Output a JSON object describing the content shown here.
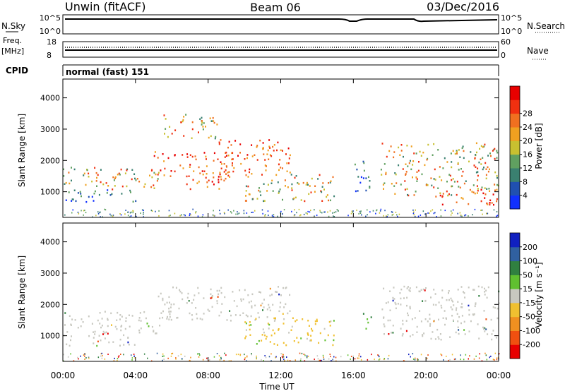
{
  "header": {
    "left": "Unwin (fitACF)",
    "center": "Beam 06",
    "right": "03/Dec/2016"
  },
  "nsky_panel": {
    "left_label": "N.Sky",
    "right_label": "N.Search",
    "left_ticks": [
      "10^5",
      "10^0"
    ],
    "right_ticks": [
      "10^5",
      "10^0"
    ]
  },
  "freq_panel": {
    "left_label_1": "Freq.",
    "left_label_2": "[MHz]",
    "left_ticks": [
      "18",
      "8"
    ],
    "right_ticks": [
      "60",
      "0"
    ],
    "right_label": "Nave"
  },
  "cpid_panel": {
    "left_label": "CPID",
    "mode_text": "normal (fast) 151"
  },
  "chart_data": [
    {
      "type": "heatmap",
      "parameter": "Power",
      "ylabel": "Slant Range [km]",
      "y_ticks": [
        "1000",
        "2000",
        "3000",
        "4000"
      ],
      "ylim": [
        180,
        4600
      ],
      "xlim_hours": [
        0,
        24
      ],
      "colorbar_label": "Power [dB]",
      "colorbar_ticks": [
        "4",
        "8",
        "12",
        "16",
        "20",
        "24",
        "28"
      ],
      "colorbar_colors": [
        "#1030ff",
        "#2050b0",
        "#3a8070",
        "#60a060",
        "#c8c030",
        "#f0a020",
        "#f07020",
        "#f03010",
        "#e80000"
      ],
      "scatter_regions": [
        {
          "t0": 0.0,
          "t1": 5.5,
          "r0": 1100,
          "r1": 1800,
          "level": "mid"
        },
        {
          "t0": 0.0,
          "t1": 4.0,
          "r0": 700,
          "r1": 1100,
          "level": "low"
        },
        {
          "t0": 5.0,
          "t1": 9.5,
          "r0": 1500,
          "r1": 2300,
          "level": "high"
        },
        {
          "t0": 6.5,
          "t1": 9.0,
          "r0": 1100,
          "r1": 1600,
          "level": "high"
        },
        {
          "t0": 8.5,
          "t1": 12.5,
          "r0": 1600,
          "r1": 2700,
          "level": "high"
        },
        {
          "t0": 10.0,
          "t1": 15.0,
          "r0": 700,
          "r1": 1600,
          "level": "mid"
        },
        {
          "t0": 5.5,
          "t1": 8.5,
          "r0": 2700,
          "r1": 3500,
          "level": "mid"
        },
        {
          "t0": 16.0,
          "t1": 17.0,
          "r0": 1000,
          "r1": 2000,
          "level": "low"
        },
        {
          "t0": 17.5,
          "t1": 24.0,
          "r0": 900,
          "r1": 2600,
          "level": "mid"
        },
        {
          "t0": 20.5,
          "t1": 24.0,
          "r0": 600,
          "r1": 1100,
          "level": "high"
        }
      ]
    },
    {
      "type": "heatmap",
      "parameter": "Velocity",
      "ylabel": "Slant Range [km]",
      "y_ticks": [
        "1000",
        "2000",
        "3000",
        "4000"
      ],
      "ylim": [
        180,
        4600
      ],
      "xlabel": "Time UT",
      "x_ticks": [
        "00:00",
        "04:00",
        "08:00",
        "12:00",
        "16:00",
        "20:00",
        "00:00"
      ],
      "xlim_hours": [
        0,
        24
      ],
      "colorbar_label": "Velocity [m s⁻¹]",
      "colorbar_ticks": [
        "200",
        "100",
        "50",
        "15",
        "-15",
        "-50",
        "-100",
        "-200"
      ],
      "colorbar_colors": [
        "#1020c0",
        "#3060a0",
        "#308040",
        "#60c030",
        "#c8c8c0",
        "#f0c030",
        "#f09020",
        "#f05010",
        "#e80000"
      ],
      "scatter_regions": [
        {
          "t0": 0.0,
          "t1": 5.5,
          "r0": 1100,
          "r1": 1800,
          "level": "grey"
        },
        {
          "t0": 0.0,
          "t1": 4.0,
          "r0": 700,
          "r1": 1100,
          "level": "grey"
        },
        {
          "t0": 5.0,
          "t1": 12.5,
          "r0": 1500,
          "r1": 2600,
          "level": "grey"
        },
        {
          "t0": 10.0,
          "t1": 15.0,
          "r0": 700,
          "r1": 1600,
          "level": "neg"
        },
        {
          "t0": 16.5,
          "t1": 17.0,
          "r0": 1200,
          "r1": 1800,
          "level": "pos"
        },
        {
          "t0": 17.5,
          "t1": 24.0,
          "r0": 900,
          "r1": 2600,
          "level": "grey"
        }
      ]
    }
  ]
}
